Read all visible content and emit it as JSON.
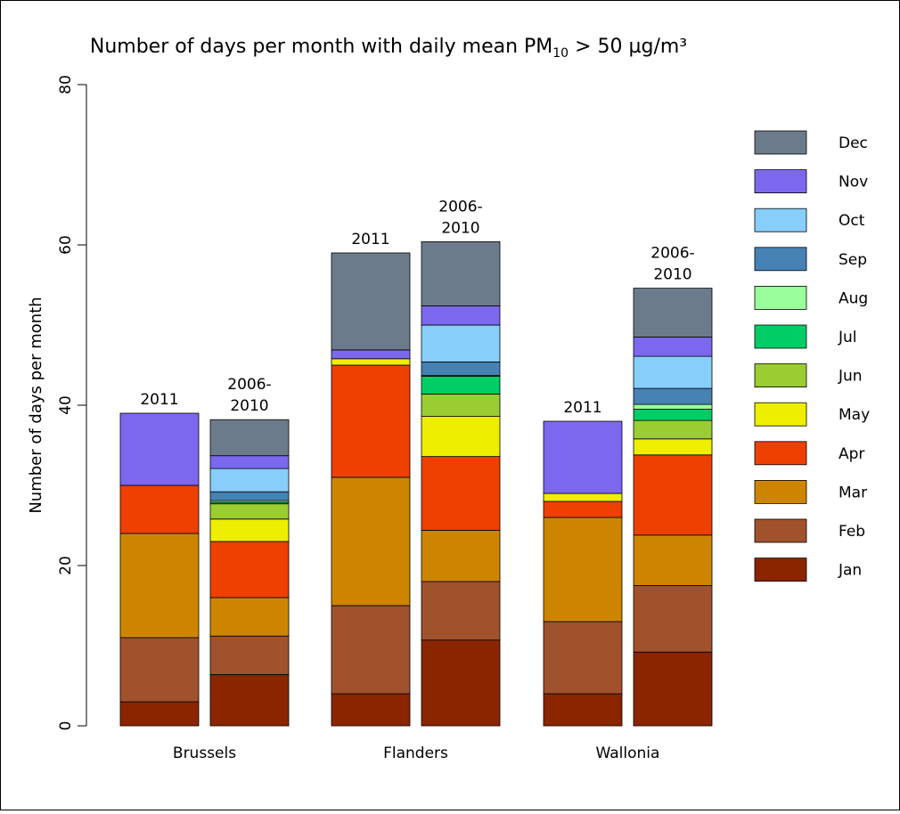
{
  "chart_data": {
    "type": "bar",
    "stacked": true,
    "title": {
      "prefix": "Number of days per month with daily mean PM",
      "subscript": "10",
      "suffix": " > 50 µg/m³"
    },
    "xlabel": "",
    "ylabel": "Number of days per month",
    "ylim": [
      0,
      80
    ],
    "yticks": [
      0,
      20,
      40,
      60,
      80
    ],
    "grid": false,
    "legend_position": "right",
    "months": [
      "Jan",
      "Feb",
      "Mar",
      "Apr",
      "May",
      "Jun",
      "Jul",
      "Aug",
      "Sep",
      "Oct",
      "Nov",
      "Dec"
    ],
    "colors": [
      "#8B2500",
      "#A0522D",
      "#CD8500",
      "#EE4000",
      "#EEEE00",
      "#9ACD32",
      "#00CD66",
      "#9AFF9A",
      "#4682B4",
      "#87CEFA",
      "#7B68EE",
      "#6C7B8B"
    ],
    "legend_order": [
      "Dec",
      "Nov",
      "Oct",
      "Sep",
      "Aug",
      "Jul",
      "Jun",
      "May",
      "Apr",
      "Mar",
      "Feb",
      "Jan"
    ],
    "groups": [
      {
        "name": "Brussels",
        "bars": [
          {
            "label": [
              "2011"
            ],
            "values": [
              3,
              8,
              13,
              6,
              0,
              0,
              0,
              0,
              0,
              0,
              9,
              0
            ]
          },
          {
            "label": [
              "2006-",
              "2010"
            ],
            "values": [
              6.4,
              4.8,
              4.8,
              7,
              2.8,
              1.9,
              0.2,
              0.2,
              1.1,
              2.9,
              1.6,
              4.5
            ]
          }
        ]
      },
      {
        "name": "Flanders",
        "bars": [
          {
            "label": [
              "2011"
            ],
            "values": [
              4,
              11,
              16,
              14,
              0.8,
              0,
              0,
              0,
              0,
              0,
              1.1,
              12.1
            ]
          },
          {
            "label": [
              "2006-",
              "2010"
            ],
            "values": [
              10.7,
              7.3,
              6.4,
              9.2,
              5,
              2.8,
              2.2,
              0.1,
              1.7,
              4.6,
              2.4,
              8
            ]
          }
        ]
      },
      {
        "name": "Wallonia",
        "bars": [
          {
            "label": [
              "2011"
            ],
            "values": [
              4,
              9,
              13,
              2,
              1,
              0,
              0,
              0,
              0,
              0,
              9,
              0
            ]
          },
          {
            "label": [
              "2006-",
              "2010"
            ],
            "values": [
              9.2,
              8.3,
              6.3,
              10,
              2,
              2.3,
              1.4,
              0.6,
              2,
              4,
              2.4,
              6.1
            ]
          }
        ]
      }
    ]
  }
}
